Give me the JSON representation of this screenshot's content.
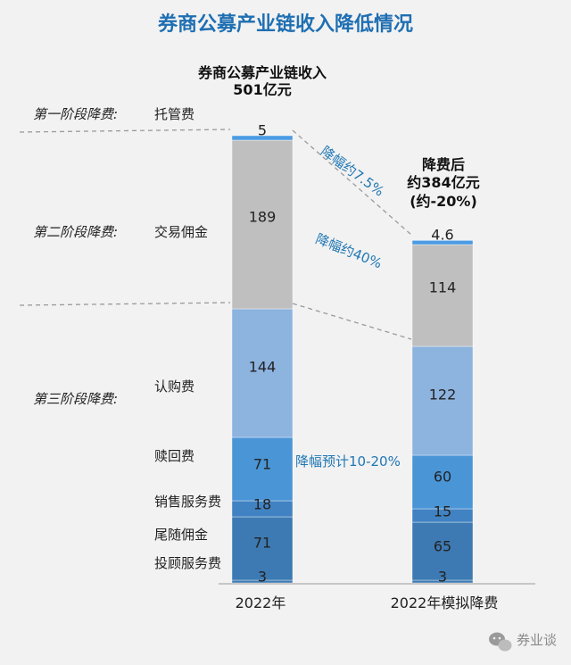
{
  "title": "券商公募产业链收入降低情况",
  "chart_data": {
    "type": "bar",
    "stacked": true,
    "title": "券商公募产业链收入降低情况",
    "categories": [
      "2022年",
      "2022年模拟降费"
    ],
    "bar_titles": [
      {
        "lines": [
          "券商公募产业链收入",
          "501亿元"
        ]
      },
      {
        "lines": [
          "降费后",
          "约384亿元",
          "(约-20%)"
        ]
      }
    ],
    "series": [
      {
        "name": "投顾服务费",
        "values": [
          3,
          3
        ],
        "color": "#3d7ab3"
      },
      {
        "name": "尾随佣金",
        "values": [
          71,
          65
        ],
        "color": "#3d7ab3"
      },
      {
        "name": "销售服务费",
        "values": [
          18,
          15
        ],
        "color": "#4183c2"
      },
      {
        "name": "赎回费",
        "values": [
          71,
          60
        ],
        "color": "#4a95d6"
      },
      {
        "name": "认购费",
        "values": [
          144,
          122
        ],
        "color": "#8db3df"
      },
      {
        "name": "交易佣金",
        "values": [
          189,
          114
        ],
        "color": "#bfbfbf"
      },
      {
        "name": "托管费",
        "values": [
          5,
          4.6
        ],
        "color": "#4a9be3"
      }
    ],
    "value_labels": [
      [
        "3",
        "71",
        "18",
        "71",
        "144",
        "189",
        "5"
      ],
      [
        "3",
        "65",
        "15",
        "60",
        "122",
        "114",
        "4.6"
      ]
    ],
    "stages": [
      {
        "label": "第一阶段降费:",
        "item": "托管费"
      },
      {
        "label": "第二阶段降费:",
        "item": "交易佣金"
      },
      {
        "label": "第三阶段降费:",
        "item": "认购费"
      }
    ],
    "annotations": [
      "降幅约7.5%",
      "降幅约40%",
      "降幅预计10-20%"
    ],
    "watermark": "券业谈",
    "accent": "#1f77b4",
    "title_color": "#1f6fb2",
    "grid": false,
    "legend": "none"
  }
}
